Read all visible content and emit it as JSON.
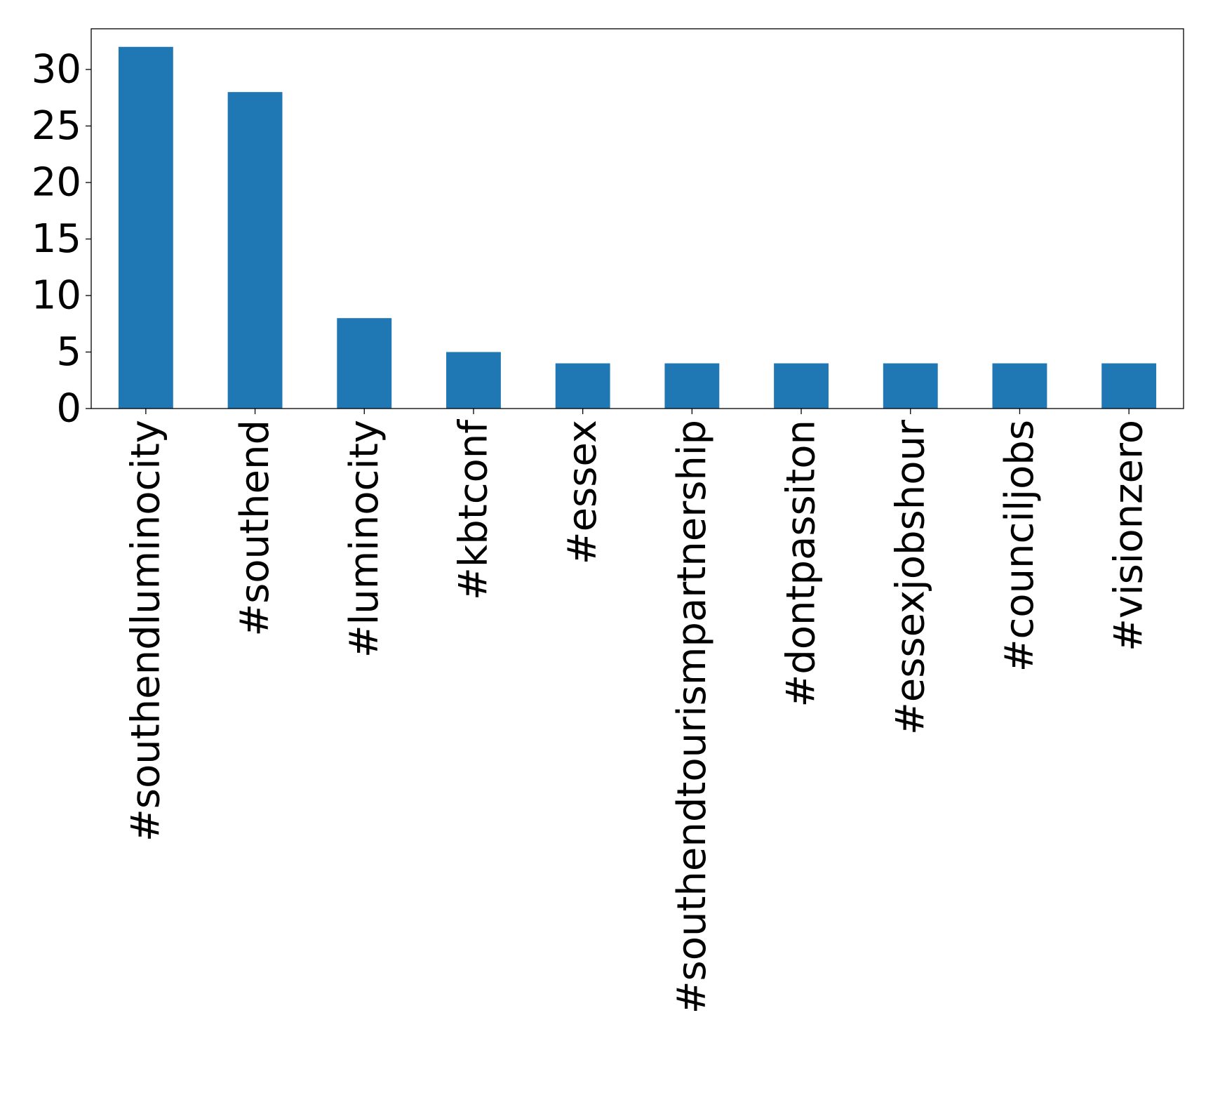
{
  "chart_data": {
    "type": "bar",
    "title": "",
    "xlabel": "",
    "ylabel": "",
    "categories": [
      "#southendluminocity",
      "#southend",
      "#luminocity",
      "#kbtconf",
      "#essex",
      "#southendtourismpartnership",
      "#dontpassiton",
      "#essexjobshour",
      "#counciljobs",
      "#visionzero"
    ],
    "values": [
      32,
      28,
      8,
      5,
      4,
      4,
      4,
      4,
      4,
      4
    ],
    "ylim": [
      0,
      33.6
    ],
    "yticks": [
      0,
      5,
      10,
      15,
      20,
      25,
      30
    ],
    "grid": false,
    "bar_color": "#1f77b4"
  }
}
